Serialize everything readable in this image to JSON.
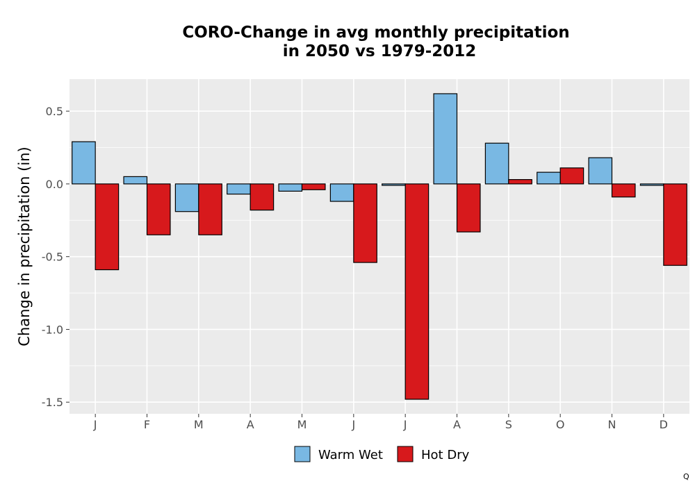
{
  "chart_data": {
    "type": "bar",
    "title_line1": "CORO-Change in avg monthly precipitation",
    "title_line2": "in 2050 vs 1979-2012",
    "xlabel": "",
    "ylabel": "Change in precipitation (in)",
    "categories": [
      "J",
      "F",
      "M",
      "A",
      "M",
      "J",
      "J",
      "A",
      "S",
      "O",
      "N",
      "D"
    ],
    "series": [
      {
        "name": "Warm Wet",
        "color": "#79b8e3",
        "values": [
          0.29,
          0.05,
          -0.19,
          -0.07,
          -0.05,
          -0.12,
          -0.01,
          0.62,
          0.28,
          0.08,
          0.18,
          -0.01
        ]
      },
      {
        "name": "Hot Dry",
        "color": "#d7191c",
        "values": [
          -0.59,
          -0.35,
          -0.35,
          -0.18,
          -0.04,
          -0.54,
          -1.48,
          -0.33,
          0.03,
          0.11,
          -0.09,
          -0.56
        ]
      }
    ],
    "ylim": [
      -1.58,
      0.72
    ],
    "yticks": [
      0.5,
      0.0,
      -0.5,
      -1.0,
      -1.5
    ],
    "ytick_labels": [
      "0.5",
      "0.0",
      "-0.5",
      "-1.0",
      "-1.5"
    ],
    "grid": true,
    "legend_position": "bottom"
  },
  "corner_mark": "Q"
}
